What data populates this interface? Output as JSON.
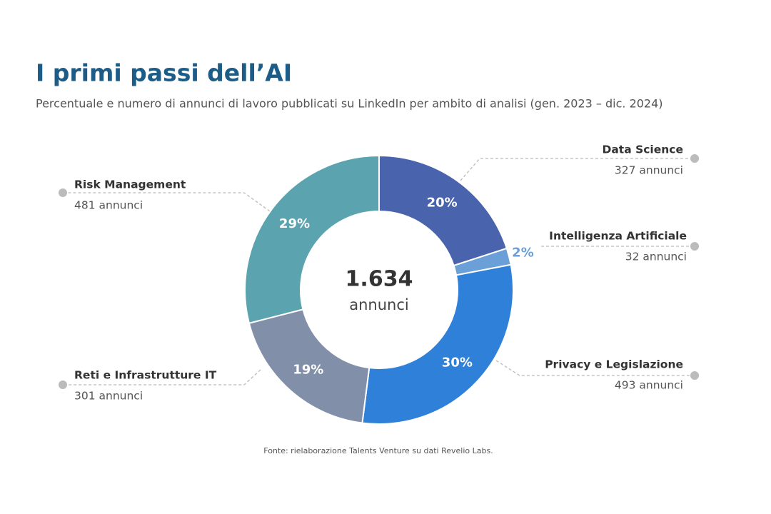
{
  "chart_data": {
    "type": "donut",
    "title": "I primi passi dell’AI",
    "subtitle": "Percentuale e numero di annunci di lavoro pubblicati su LinkedIn per ambito di analisi (gen. 2023 – dic. 2024)",
    "categories": [
      "Data Science",
      "Intelligenza Artificiale",
      "Privacy e Legislazione",
      "Reti e Infrastrutture IT",
      "Risk Management"
    ],
    "values": [
      20,
      2,
      30,
      19,
      29
    ],
    "value_labels": [
      "20%",
      "2%",
      "30%",
      "19%",
      "29%"
    ],
    "category_notes": [
      "327 annunci",
      "32 annunci",
      "493 annunci",
      "301 annunci",
      "481 annunci"
    ],
    "colors": [
      "#4a63ad",
      "#6a9fd8",
      "#2f80d8",
      "#8190a8",
      "#5ba3ae"
    ],
    "center_label": "1.634",
    "center_sublabel": "annunci",
    "source": "Fonte: rielaborazione Talents Venture su dati Revelio Labs."
  }
}
